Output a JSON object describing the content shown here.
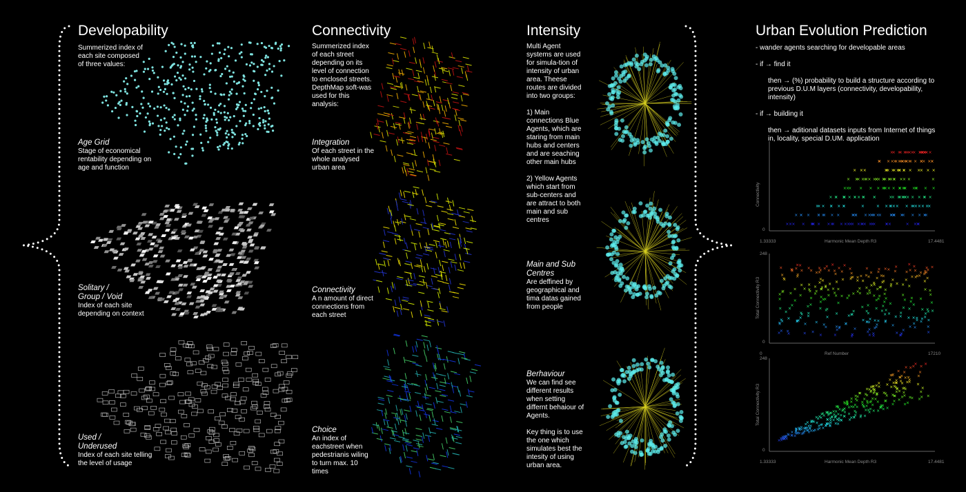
{
  "developability": {
    "title": "Developability",
    "intro": "Summerized index of each site composed of three values:",
    "items": [
      {
        "title": "Age Grid",
        "text": "Stage of economical rentability depending on age and function"
      },
      {
        "title": "Solitary / Group / Void",
        "text": "Index of each site depending on context"
      },
      {
        "title": "Used / Underused",
        "text": "Index of each site telling the level of usage"
      }
    ]
  },
  "connectivity": {
    "title": "Connectivity",
    "intro": "Summerized index of each street depending on its level of connection to enclosed streets. DepthMap soft-was used for this analysis:",
    "items": [
      {
        "title": "Integration",
        "text": "Of each street in the whole analysed urban area"
      },
      {
        "title": "Connectivity",
        "text": "A n amount of direct connections from each street"
      },
      {
        "title": "Choice",
        "text": "An index of eachstreet when pedestrianis wiling to turn max. 10 times"
      }
    ]
  },
  "intensity": {
    "title": "Intensity",
    "intro": [
      "Multi Agent systems are used for simula-tion of intensity of urban area. Theese routes are divided into two groups:",
      "1) Main connections Blue Agents, which are staring from main hubs and centers and are seaching other main hubs",
      "2) Yellow Agents which start from sub-centers and are attract to both main and sub centres"
    ],
    "items": [
      {
        "title": "Main and Sub Centres",
        "text": [
          "Are deffined by geographical and tima datas gained from people"
        ]
      },
      {
        "title": "Berhaviour",
        "text": [
          "We can find see different results when setting differnt behaiour of Agents.",
          "Key thing is to use the one which simulates best the intesity of using urban area."
        ]
      }
    ]
  },
  "prediction": {
    "title": "Urban Evolution Prediction",
    "lines": [
      "- wander agents searching for developable areas",
      "- if → find it",
      "then → (%) probability to build a structure according to previous D.U.M layers (connectivity, developability, intensity)",
      "- if → building it",
      "then → aditional datasets inputs from Internet of things in, locality, special D.UM. application"
    ],
    "plots": [
      {
        "y_label": "Connectivity",
        "x_label": "Harmonic Mean Depth R3",
        "x_min": "1.33333",
        "x_max": "17.4481",
        "y_min": "0"
      },
      {
        "y_label": "Total Connectivity R3",
        "x_label": "Ref Number",
        "x_min": "0",
        "x_max": "17210",
        "y_min": "0",
        "y_max": "248"
      },
      {
        "y_label": "Total Connectivity R3",
        "x_label": "Harmonic Mean Depth R3",
        "x_min": "1.33333",
        "x_max": "17.4481",
        "y_min": "0",
        "y_max": "248"
      }
    ]
  }
}
